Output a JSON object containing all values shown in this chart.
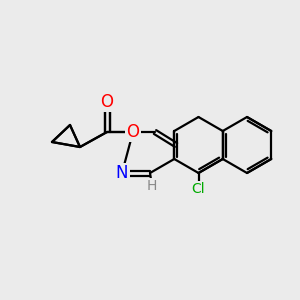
{
  "bg_color": "#ebebeb",
  "line_color": "#000000",
  "bond_width": 1.6,
  "atom_colors": {
    "O": "#ff0000",
    "N": "#0000ff",
    "Cl": "#00aa00",
    "C": "#000000",
    "H": "#888888"
  },
  "font_size_atom": 12,
  "font_size_small": 10,
  "font_size_H": 10
}
